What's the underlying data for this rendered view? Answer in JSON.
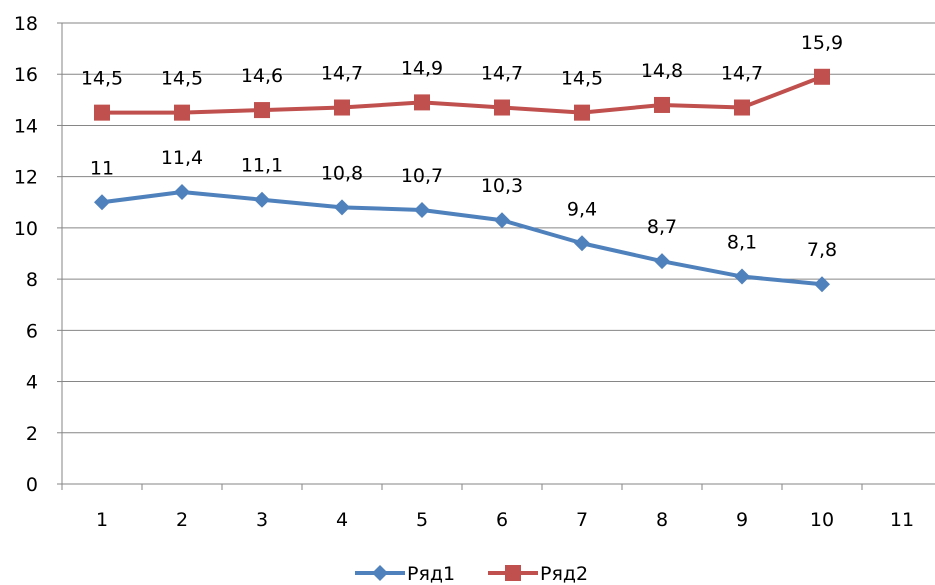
{
  "chart_data": {
    "type": "line",
    "x": [
      1,
      2,
      3,
      4,
      5,
      6,
      7,
      8,
      9,
      10
    ],
    "x_ticks": [
      1,
      2,
      3,
      4,
      5,
      6,
      7,
      8,
      9,
      10,
      11
    ],
    "x_tick_labels": [
      "1",
      "2",
      "3",
      "4",
      "5",
      "6",
      "7",
      "8",
      "9",
      "10",
      "11"
    ],
    "y_ticks": [
      0,
      2,
      4,
      6,
      8,
      10,
      12,
      14,
      16,
      18
    ],
    "y_tick_labels": [
      "0",
      "2",
      "4",
      "6",
      "8",
      "10",
      "12",
      "14",
      "16",
      "18"
    ],
    "ylim": [
      0,
      18
    ],
    "grid": "horizontal",
    "legend_position": "bottom",
    "series": [
      {
        "name": "Ряд1",
        "color": "#4F81BD",
        "marker": "diamond",
        "values": [
          11,
          11.4,
          11.1,
          10.8,
          10.7,
          10.3,
          9.4,
          8.7,
          8.1,
          7.8
        ],
        "labels": [
          "11",
          "11,4",
          "11,1",
          "10,8",
          "10,7",
          "10,3",
          "9,4",
          "8,7",
          "8,1",
          "7,8"
        ]
      },
      {
        "name": "Ряд2",
        "color": "#C0504D",
        "marker": "square",
        "values": [
          14.5,
          14.5,
          14.6,
          14.7,
          14.9,
          14.7,
          14.5,
          14.8,
          14.7,
          15.9
        ],
        "labels": [
          "14,5",
          "14,5",
          "14,6",
          "14,7",
          "14,9",
          "14,7",
          "14,5",
          "14,8",
          "14,7",
          "15,9"
        ]
      }
    ]
  }
}
